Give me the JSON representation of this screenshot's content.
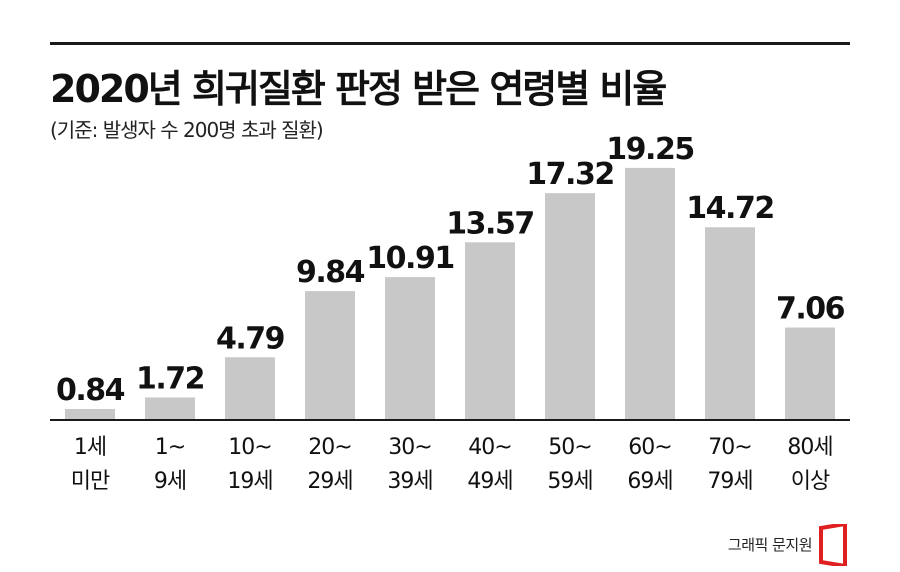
{
  "header": {
    "title": "2020년 희귀질환 판정 받은 연령별 비율",
    "subtitle": "(기준: 발생자 수 200명 초과 질환)"
  },
  "chart_data": {
    "type": "bar",
    "title": "2020년 희귀질환 판정 받은 연령별 비율",
    "subtitle": "(기준: 발생자 수 200명 초과 질환)",
    "categories": [
      [
        "1세",
        "미만"
      ],
      [
        "1~",
        "9세"
      ],
      [
        "10~",
        "19세"
      ],
      [
        "20~",
        "29세"
      ],
      [
        "30~",
        "39세"
      ],
      [
        "40~",
        "49세"
      ],
      [
        "50~",
        "59세"
      ],
      [
        "60~",
        "69세"
      ],
      [
        "70~",
        "79세"
      ],
      [
        "80세",
        "이상"
      ]
    ],
    "values": [
      0.84,
      1.72,
      4.79,
      9.84,
      10.91,
      13.57,
      17.32,
      19.25,
      14.72,
      7.06
    ],
    "value_labels": [
      "0.84",
      "1.72",
      "4.79",
      "9.84",
      "10.91",
      "13.57",
      "17.32",
      "19.25",
      "14.72",
      "7.06"
    ],
    "ylim": [
      0,
      21
    ],
    "grid": false,
    "bar_color": "#c8c8c8",
    "axis_color": "#1a1a1a"
  },
  "footer": {
    "credit": "그래픽 문지원",
    "logo_icon": "red-bracket-logo-icon",
    "logo_color": "#e02020"
  }
}
